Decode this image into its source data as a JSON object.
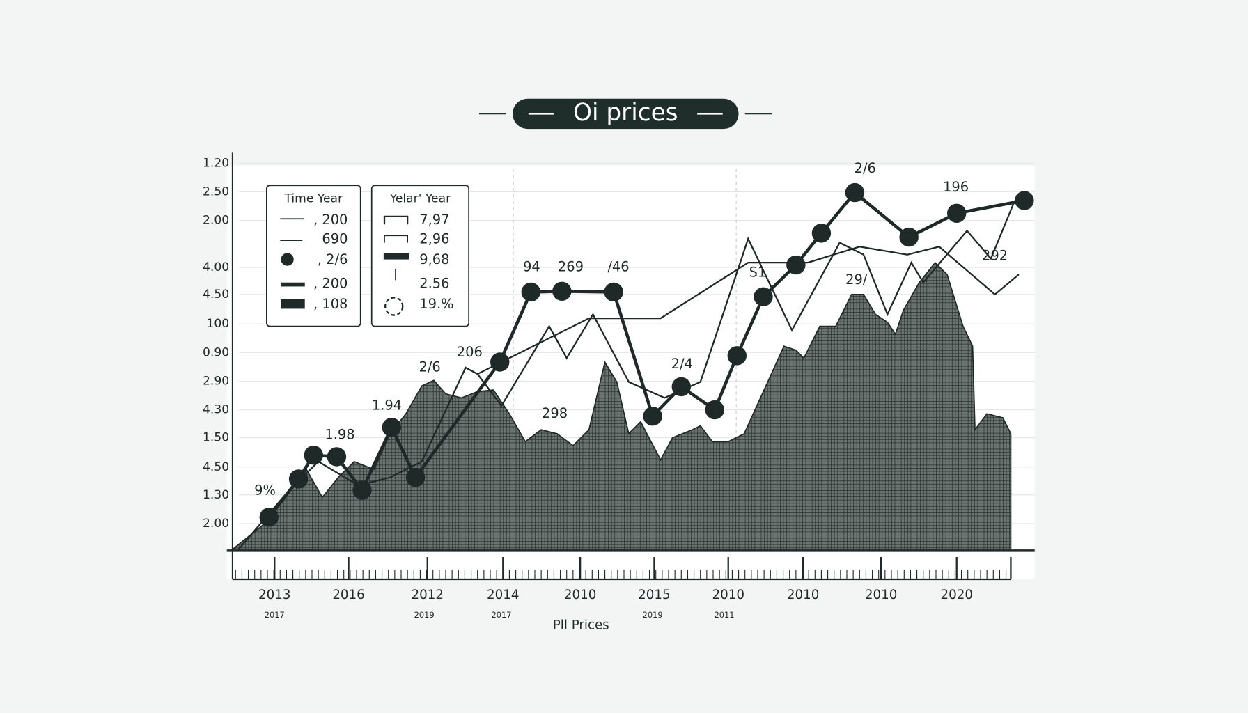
{
  "title": "Oi prices",
  "y_axis_labels": [
    "1.20",
    "2.50",
    "2.00",
    "4.00",
    "4.50",
    "100",
    "0.90",
    "2.90",
    "4.30",
    "1.50",
    "4.50",
    "1.30",
    "2.00"
  ],
  "x_axis_labels": [
    "2013",
    "2016",
    "2012",
    "2014",
    "2010",
    "2015",
    "2010",
    "2010",
    "2010",
    "2020"
  ],
  "x_axis_sublabels": [
    "2017",
    "2019",
    "2017",
    "2019",
    "2011"
  ],
  "x_axis_title": "Pll Prices",
  "legend_left": {
    "title": "Time Year",
    "entries": [
      ", 200",
      "690",
      ", 2/6",
      ", 200",
      ", 108"
    ]
  },
  "legend_right": {
    "title": "Yelar' Year",
    "entries": [
      "7,97",
      "2,96",
      "9,68",
      "2.56",
      "19.%"
    ]
  },
  "data_labels": [
    "9%",
    "1.98",
    "1.94",
    "2/6",
    "206",
    "94",
    "269",
    "/46",
    "298",
    "2/4",
    "S1",
    "29/",
    "2/6",
    "196",
    "292"
  ]
}
